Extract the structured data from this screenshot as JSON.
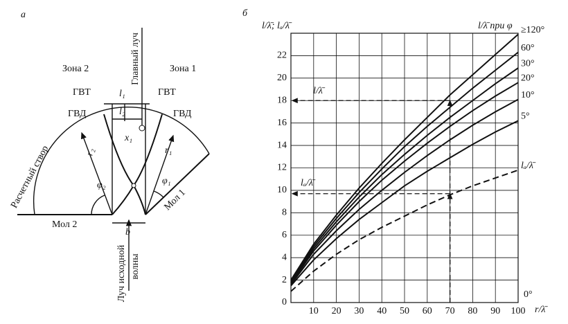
{
  "diagram": {
    "panel": "а",
    "zone_left": "Зона 2",
    "zone_right": "Зона 1",
    "main_ray": "Главный луч",
    "gvt_left": "ГВТ",
    "gvt_right": "ГВТ",
    "l1": "l₁",
    "l2": "l₂",
    "gvd_left": "ГВД",
    "gvd_right": "ГВД",
    "x1": "x₁",
    "r2": "r₂",
    "r1": "r₁",
    "phi2": "φ₂",
    "phi1": "φ₁",
    "design_line": "Расчетный створ",
    "mole2": "Мол 2",
    "mole1": "Мол 1",
    "b": "b",
    "incident_ray_1": "Луч исходной",
    "incident_ray_2": "волны"
  },
  "chart_data": {
    "type": "line",
    "panel": "б",
    "y_label": "l/λ̄; lₐ/λ̄",
    "x_label": "r/λ̄",
    "legend_title": "l/λ̄ при φ",
    "zero_label": "0°",
    "arrow_label_1": "l/λ̄",
    "arrow_label_2": "lₐ/λ̄",
    "x": [
      0,
      10,
      20,
      30,
      40,
      50,
      60,
      70,
      80,
      90,
      100
    ],
    "series": [
      {
        "name": "≥120°",
        "color": "#111111",
        "values": [
          2,
          5.2,
          7.8,
          10.2,
          12.4,
          14.5,
          16.5,
          18.5,
          20.3,
          22.1,
          23.9
        ]
      },
      {
        "name": "60°",
        "color": "#111111",
        "values": [
          1.9,
          5.0,
          7.5,
          9.8,
          11.9,
          13.9,
          15.7,
          17.4,
          19.1,
          20.7,
          22.3
        ]
      },
      {
        "name": "30°",
        "color": "#111111",
        "values": [
          1.8,
          4.8,
          7.2,
          9.4,
          11.4,
          13.2,
          14.9,
          16.5,
          18.0,
          19.5,
          20.9
        ]
      },
      {
        "name": "20°",
        "color": "#111111",
        "values": [
          1.7,
          4.6,
          6.9,
          9.0,
          10.9,
          12.6,
          14.2,
          15.7,
          17.1,
          18.4,
          19.6
        ]
      },
      {
        "name": "10°",
        "color": "#111111",
        "values": [
          1.6,
          4.3,
          6.4,
          8.3,
          10.0,
          11.6,
          13.1,
          14.5,
          15.8,
          17.0,
          18.1
        ]
      },
      {
        "name": "5°",
        "color": "#111111",
        "values": [
          1.5,
          3.8,
          5.7,
          7.4,
          8.9,
          10.4,
          11.7,
          12.9,
          14.1,
          15.2,
          16.2
        ]
      },
      {
        "name": "lₐ/λ̄",
        "color": "#111111",
        "dashed": true,
        "values": [
          1.0,
          2.8,
          4.3,
          5.6,
          6.7,
          7.7,
          8.7,
          9.6,
          10.4,
          11.1,
          11.8
        ]
      }
    ],
    "reference_points": [
      {
        "x": 70,
        "y": 18
      },
      {
        "x": 70,
        "y": 9.7
      }
    ],
    "xlim": [
      0,
      100
    ],
    "ylim": [
      0,
      24
    ],
    "xticks": [
      10,
      20,
      30,
      40,
      50,
      60,
      70,
      80,
      90,
      100
    ],
    "yticks": [
      0,
      2,
      4,
      6,
      8,
      10,
      12,
      14,
      16,
      18,
      20,
      22
    ],
    "grid": true
  }
}
